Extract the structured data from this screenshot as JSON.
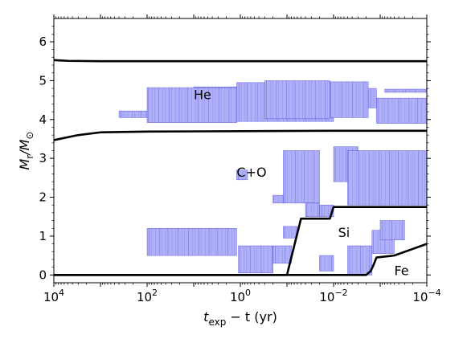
{
  "chart_data": {
    "type": "kippenhahn",
    "xlabel_parts": [
      "t",
      "exp",
      " − t (yr)"
    ],
    "ylabel_parts": [
      "M",
      "r",
      "/M",
      "⊙"
    ],
    "x_scale": "log-reversed",
    "xlim": [
      10000,
      0.0001
    ],
    "ylim": [
      -0.2,
      6.6
    ],
    "x_ticks": [
      {
        "value": 10000,
        "base": "10",
        "exp": "4"
      },
      {
        "value": 100,
        "base": "10",
        "exp": "2"
      },
      {
        "value": 1,
        "base": "10",
        "exp": "0"
      },
      {
        "value": 0.01,
        "base": "10",
        "exp": "−2"
      },
      {
        "value": 0.0001,
        "base": "10",
        "exp": "−4"
      }
    ],
    "y_ticks": [
      0,
      1,
      2,
      3,
      4,
      5,
      6
    ],
    "annotations": [
      {
        "text": "He",
        "x": 10,
        "y": 4.65
      },
      {
        "text": "C+O",
        "x": 1.2,
        "y": 2.65
      },
      {
        "text": "Si",
        "x": 0.008,
        "y": 1.1
      },
      {
        "text": "Fe",
        "x": 0.0005,
        "y": 0.12
      }
    ],
    "boundary_lines": [
      {
        "name": "",
        "points": [
          [
            10000,
            5.53
          ],
          [
            5000,
            5.51
          ],
          [
            1000,
            5.5
          ],
          [
            0.0001,
            5.5
          ]
        ]
      },
      {
        "name": "",
        "points": [
          [
            10000,
            3.47
          ],
          [
            3000,
            3.6
          ],
          [
            1000,
            3.67
          ],
          [
            100,
            3.69
          ],
          [
            1,
            3.7
          ],
          [
            0.01,
            3.71
          ],
          [
            0.0001,
            3.71
          ]
        ]
      },
      {
        "name": "",
        "points": [
          [
            10000,
            0.0
          ],
          [
            0.1,
            0.0
          ],
          [
            0.05,
            1.45
          ],
          [
            0.012,
            1.45
          ],
          [
            0.01,
            1.75
          ],
          [
            0.0001,
            1.75
          ]
        ]
      },
      {
        "name": "",
        "points": [
          [
            10000,
            0.0
          ],
          [
            0.002,
            0.0
          ],
          [
            0.0016,
            0.1
          ],
          [
            0.0014,
            0.25
          ],
          [
            0.0012,
            0.45
          ],
          [
            0.0007,
            0.48
          ],
          [
            0.0005,
            0.5
          ],
          [
            0.0001,
            0.8
          ]
        ]
      }
    ],
    "convective_zones": [
      {
        "x0": 10,
        "x1": 0.3,
        "y0": 4.72,
        "y1": 4.84
      },
      {
        "x0": 400,
        "x1": 100,
        "y0": 4.05,
        "y1": 4.22
      },
      {
        "x0": 100,
        "x1": 1.2,
        "y0": 3.92,
        "y1": 4.82
      },
      {
        "x0": 1.2,
        "x1": 0.01,
        "y0": 3.95,
        "y1": 4.95
      },
      {
        "x0": 0.3,
        "x1": 0.012,
        "y0": 4.02,
        "y1": 5.0
      },
      {
        "x0": 0.012,
        "x1": 0.0018,
        "y0": 4.05,
        "y1": 4.97
      },
      {
        "x0": 0.0018,
        "x1": 0.0012,
        "y0": 4.3,
        "y1": 4.8
      },
      {
        "x0": 0.0012,
        "x1": 0.0001,
        "y0": 3.9,
        "y1": 4.55
      },
      {
        "x0": 0.0008,
        "x1": 0.0001,
        "y0": 4.7,
        "y1": 4.78
      },
      {
        "x0": 1.2,
        "x1": 0.7,
        "y0": 2.45,
        "y1": 2.7
      },
      {
        "x0": 0.2,
        "x1": 0.12,
        "y0": 1.85,
        "y1": 2.05
      },
      {
        "x0": 0.12,
        "x1": 0.02,
        "y0": 1.85,
        "y1": 3.2
      },
      {
        "x0": 0.04,
        "x1": 0.02,
        "y0": 1.5,
        "y1": 1.85
      },
      {
        "x0": 0.02,
        "x1": 0.01,
        "y0": 1.5,
        "y1": 1.8
      },
      {
        "x0": 0.01,
        "x1": 0.003,
        "y0": 2.4,
        "y1": 3.3
      },
      {
        "x0": 0.005,
        "x1": 0.0001,
        "y0": 1.8,
        "y1": 3.2
      },
      {
        "x0": 100,
        "x1": 1.2,
        "y0": 0.5,
        "y1": 1.2
      },
      {
        "x0": 1.1,
        "x1": 0.2,
        "y0": 0.05,
        "y1": 0.75
      },
      {
        "x0": 0.2,
        "x1": 0.08,
        "y0": 0.3,
        "y1": 0.75
      },
      {
        "x0": 0.12,
        "x1": 0.06,
        "y0": 0.95,
        "y1": 1.25
      },
      {
        "x0": 0.02,
        "x1": 0.01,
        "y0": 0.1,
        "y1": 0.5
      },
      {
        "x0": 0.005,
        "x1": 0.0015,
        "y0": 0.0,
        "y1": 0.75
      },
      {
        "x0": 0.0015,
        "x1": 0.0005,
        "y0": 0.55,
        "y1": 1.15
      },
      {
        "x0": 0.001,
        "x1": 0.0003,
        "y0": 0.9,
        "y1": 1.4
      }
    ],
    "colors": {
      "fill": "#b0b0f8",
      "edge": "#3030d8",
      "line": "#000000"
    }
  }
}
